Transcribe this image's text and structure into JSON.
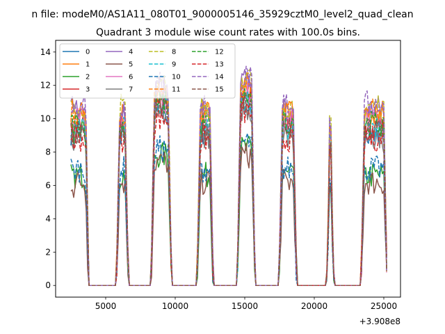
{
  "chart_data": {
    "type": "line",
    "suptitle": "n file: modeM0/AS1A11_080T01_9000005146_35929cztM0_level2_quad_clean",
    "title": "Quadrant 3 module wise count rates with 100.0s bins.",
    "xlabel": "",
    "ylabel": "",
    "x_offset_label": "+3.908e8",
    "xlim": [
      1400,
      26200
    ],
    "ylim": [
      -0.7,
      14.7
    ],
    "x_ticks": [
      5000,
      10000,
      15000,
      20000,
      25000
    ],
    "x_tick_labels": [
      "5000",
      "10000",
      "15000",
      "20000",
      "25000"
    ],
    "y_ticks": [
      0,
      2,
      4,
      6,
      8,
      10,
      12,
      14
    ],
    "y_tick_labels": [
      "0",
      "2",
      "4",
      "6",
      "8",
      "10",
      "12",
      "14"
    ],
    "grid": false,
    "legend_position": "top-left",
    "legend_columns": 4,
    "series": [
      {
        "name": "0",
        "color": "#1f77b4",
        "dash": "solid",
        "level": 9.2
      },
      {
        "name": "1",
        "color": "#ff7f0e",
        "dash": "solid",
        "level": 10.2
      },
      {
        "name": "2",
        "color": "#2ca02c",
        "dash": "solid",
        "level": 6.6
      },
      {
        "name": "3",
        "color": "#d62728",
        "dash": "solid",
        "level": 9.6
      },
      {
        "name": "4",
        "color": "#9467bd",
        "dash": "solid",
        "level": 10.6
      },
      {
        "name": "5",
        "color": "#8c564b",
        "dash": "solid",
        "level": 6.2
      },
      {
        "name": "6",
        "color": "#e377c2",
        "dash": "solid",
        "level": 9.9
      },
      {
        "name": "7",
        "color": "#7f7f7f",
        "dash": "solid",
        "level": 9.0
      },
      {
        "name": "8",
        "color": "#bcbd22",
        "dash": "dashed",
        "level": 10.8
      },
      {
        "name": "9",
        "color": "#17becf",
        "dash": "dashed",
        "level": 9.4
      },
      {
        "name": "10",
        "color": "#1f77b4",
        "dash": "dashed",
        "level": 7.0
      },
      {
        "name": "11",
        "color": "#ff7f0e",
        "dash": "dashed",
        "level": 10.4
      },
      {
        "name": "12",
        "color": "#2ca02c",
        "dash": "dashed",
        "level": 9.7
      },
      {
        "name": "13",
        "color": "#d62728",
        "dash": "dashed",
        "level": 8.8
      },
      {
        "name": "14",
        "color": "#9467bd",
        "dash": "dashed",
        "level": 10.9
      },
      {
        "name": "15",
        "color": "#8c564b",
        "dash": "dashed",
        "level": 9.3
      }
    ],
    "active_intervals": [
      [
        2500,
        3800
      ],
      [
        5800,
        6600
      ],
      [
        8300,
        9700
      ],
      [
        11600,
        12700
      ],
      [
        14500,
        15700
      ],
      [
        17500,
        18700
      ],
      [
        20900,
        21400
      ],
      [
        23400,
        25200
      ]
    ]
  }
}
